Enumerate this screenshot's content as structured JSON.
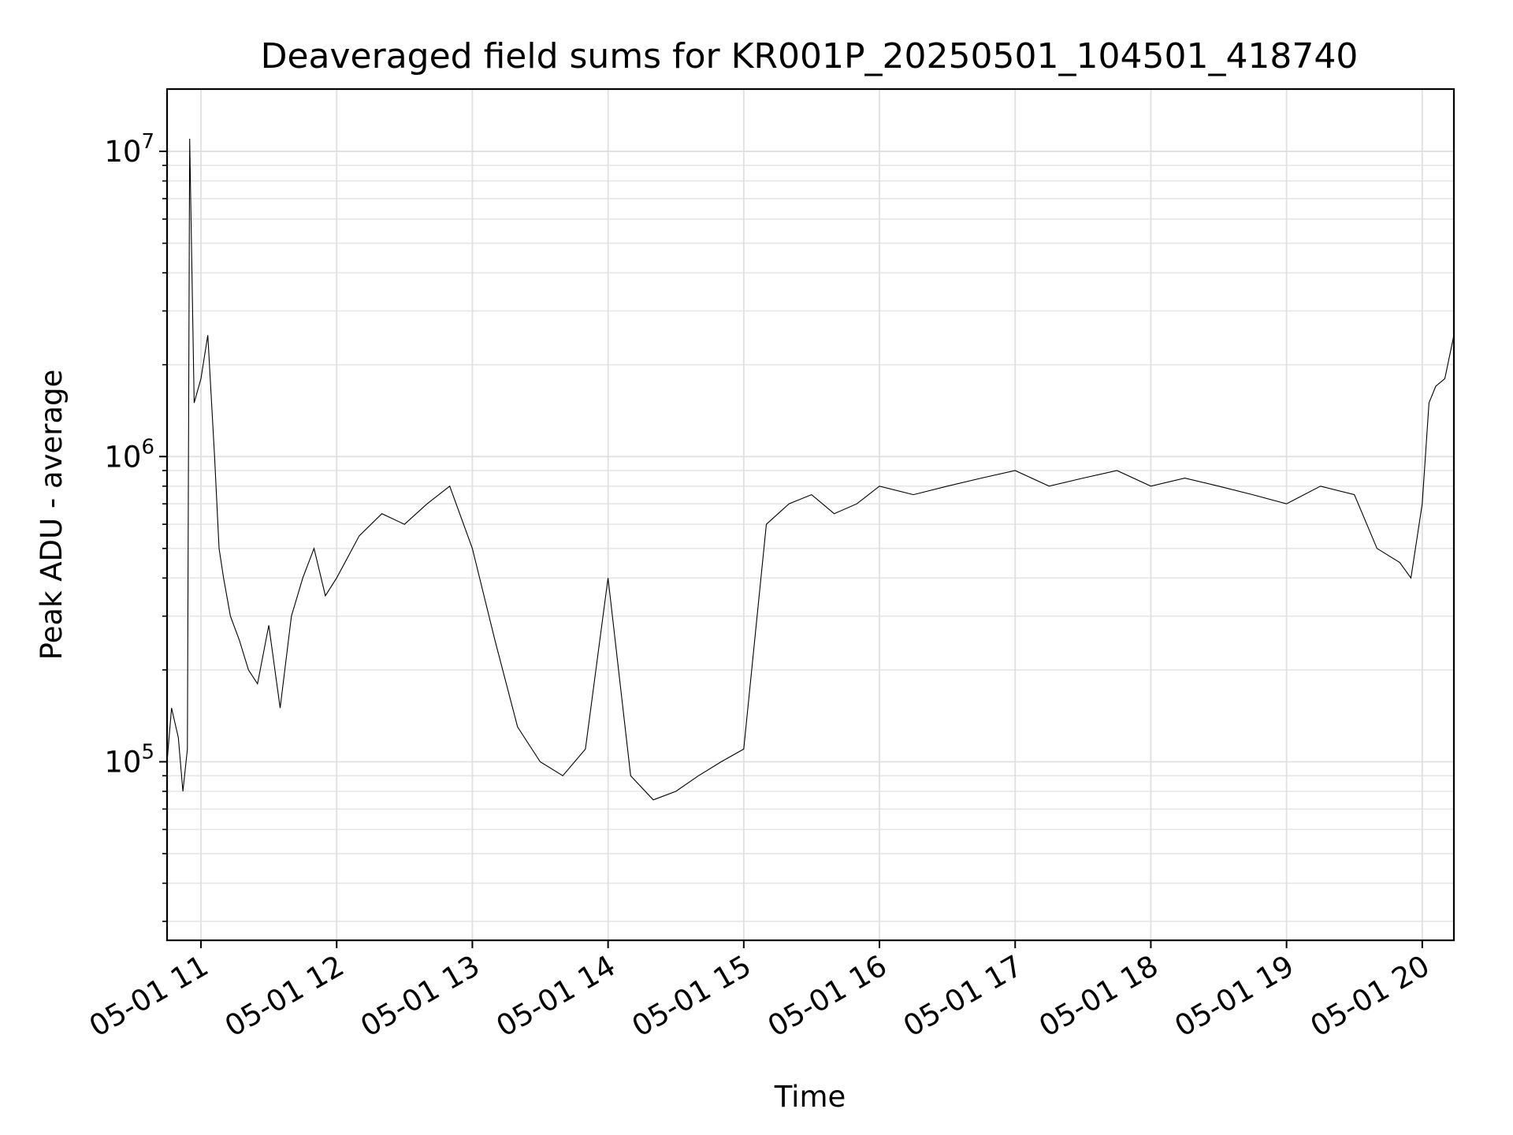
{
  "chart_data": {
    "type": "line",
    "title": "Deaveraged field sums for KR001P_20250501_104501_418740",
    "xlabel": "Time",
    "ylabel": "Peak ADU - average",
    "yscale": "log",
    "ylim": [
      26000,
      16000000
    ],
    "xlim": [
      "05-01 10:45",
      "05-01 20:14"
    ],
    "grid": true,
    "legend": "none",
    "line_color": "#000000",
    "x_ticks": [
      "05-01 11",
      "05-01 12",
      "05-01 13",
      "05-01 14",
      "05-01 15",
      "05-01 16",
      "05-01 17",
      "05-01 18",
      "05-01 19",
      "05-01 20"
    ],
    "y_ticks": [
      {
        "base": "10",
        "exp": "5",
        "value": 100000
      },
      {
        "base": "10",
        "exp": "6",
        "value": 1000000
      },
      {
        "base": "10",
        "exp": "7",
        "value": 10000000
      }
    ],
    "series": [
      {
        "values_note_free": true,
        "x": [
          "05-01 10:45",
          "05-01 10:47",
          "05-01 10:50",
          "05-01 10:52",
          "05-01 10:54",
          "05-01 10:55",
          "05-01 10:57",
          "05-01 11:00",
          "05-01 11:03",
          "05-01 11:06",
          "05-01 11:08",
          "05-01 11:10",
          "05-01 11:13",
          "05-01 11:17",
          "05-01 11:21",
          "05-01 11:25",
          "05-01 11:30",
          "05-01 11:35",
          "05-01 11:40",
          "05-01 11:45",
          "05-01 11:50",
          "05-01 11:55",
          "05-01 12:00",
          "05-01 12:10",
          "05-01 12:20",
          "05-01 12:30",
          "05-01 12:40",
          "05-01 12:50",
          "05-01 13:00",
          "05-01 13:10",
          "05-01 13:20",
          "05-01 13:30",
          "05-01 13:40",
          "05-01 13:50",
          "05-01 14:00",
          "05-01 14:10",
          "05-01 14:20",
          "05-01 14:30",
          "05-01 14:40",
          "05-01 14:50",
          "05-01 15:00",
          "05-01 15:10",
          "05-01 15:20",
          "05-01 15:30",
          "05-01 15:40",
          "05-01 15:50",
          "05-01 16:00",
          "05-01 16:15",
          "05-01 16:30",
          "05-01 16:45",
          "05-01 17:00",
          "05-01 17:15",
          "05-01 17:30",
          "05-01 17:45",
          "05-01 18:00",
          "05-01 18:15",
          "05-01 18:30",
          "05-01 18:45",
          "05-01 19:00",
          "05-01 19:15",
          "05-01 19:30",
          "05-01 19:40",
          "05-01 19:50",
          "05-01 19:55",
          "05-01 20:00",
          "05-01 20:03",
          "05-01 20:06",
          "05-01 20:10",
          "05-01 20:14"
        ],
        "y": [
          100000,
          150000,
          120000,
          80000,
          110000,
          11000000,
          1500000,
          1800000,
          2500000,
          1000000,
          500000,
          400000,
          300000,
          250000,
          200000,
          180000,
          280000,
          150000,
          300000,
          400000,
          500000,
          350000,
          400000,
          550000,
          650000,
          600000,
          700000,
          800000,
          500000,
          250000,
          130000,
          100000,
          90000,
          110000,
          400000,
          90000,
          75000,
          80000,
          90000,
          100000,
          110000,
          600000,
          700000,
          750000,
          650000,
          700000,
          800000,
          750000,
          800000,
          850000,
          900000,
          800000,
          850000,
          900000,
          800000,
          850000,
          800000,
          750000,
          700000,
          800000,
          750000,
          500000,
          450000,
          400000,
          700000,
          1500000,
          1700000,
          1800000,
          2500000
        ]
      }
    ]
  }
}
